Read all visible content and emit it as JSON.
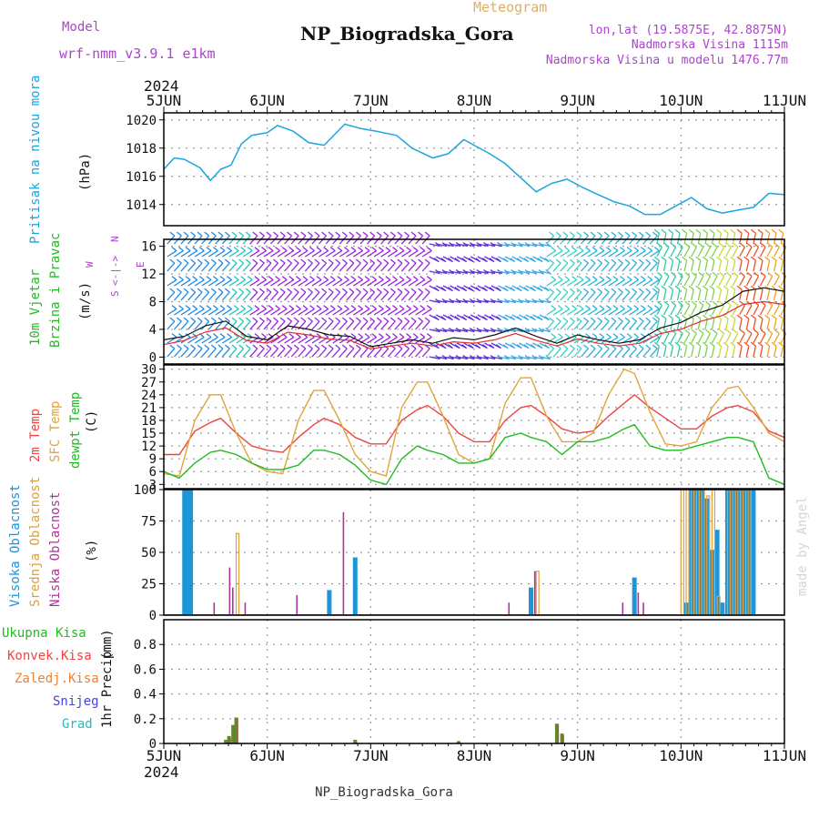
{
  "header": {
    "model_label": "Model",
    "model_name": "wrf-nmm_v3.9.1 e1km",
    "meteogram_label": "Meteogram",
    "station_title": "NP_Biogradska_Gora",
    "lonlat": "lon,lat (19.5875E, 42.8875N)",
    "altitude": "Nadmorska Visina 1115m",
    "model_altitude": "Nadmorska Visina u modelu 1476.77m",
    "year": "2024",
    "footer_station": "NP_Biogradska_Gora",
    "credit": "made by Angel"
  },
  "colors": {
    "pressure": "#1ba5dc",
    "t2m": "#ee4444",
    "tsfc": "#e0a53a",
    "dewpt": "#22bb22",
    "high_cloud": "#1c95d9",
    "mid_cloud": "#dca040",
    "low_cloud": "#b0329e",
    "precip_total": "#5f8a2d",
    "precip_conv": "#dd3333",
    "model_text": "#aa44cc",
    "meteogram_text": "#e0b060"
  },
  "days": [
    "5JUN",
    "6JUN",
    "7JUN",
    "8JUN",
    "9JUN",
    "10JUN",
    "11JUN"
  ],
  "chart_data": [
    {
      "id": "pressure",
      "type": "line",
      "ylabel": "Pritisak na nivou mora",
      "unit": "(hPa)",
      "ylim": [
        1012.5,
        1020.5
      ],
      "yticks": [
        1014,
        1016,
        1018,
        1020
      ],
      "series": [
        {
          "x": [
            0,
            0.1,
            0.2,
            0.35,
            0.45,
            0.55,
            0.65,
            0.75,
            0.85,
            1.0,
            1.1,
            1.25,
            1.4,
            1.55,
            1.75,
            1.9,
            2.05,
            2.25,
            2.4,
            2.6,
            2.75,
            2.9,
            3.0,
            3.15,
            3.3,
            3.45,
            3.6,
            3.75,
            3.9,
            4.05,
            4.2,
            4.35,
            4.5,
            4.65,
            4.8,
            4.95,
            5.1,
            5.25,
            5.4,
            5.55,
            5.7,
            5.85,
            6.0
          ],
          "values": [
            1016.5,
            1017.3,
            1017.2,
            1016.6,
            1015.7,
            1016.5,
            1016.8,
            1018.3,
            1018.9,
            1019.1,
            1019.6,
            1019.2,
            1018.4,
            1018.2,
            1019.7,
            1019.4,
            1019.2,
            1018.9,
            1018.0,
            1017.3,
            1017.6,
            1018.6,
            1018.2,
            1017.6,
            1016.9,
            1015.9,
            1014.9,
            1015.5,
            1015.8,
            1015.2,
            1014.7,
            1014.2,
            1013.9,
            1013.3,
            1013.3,
            1013.9,
            1014.5,
            1013.7,
            1013.4,
            1013.6,
            1013.8,
            1014.8,
            1014.7
          ]
        }
      ]
    },
    {
      "id": "wind",
      "type": "line",
      "ylabel": "10m Vjetar Brzina i Pravac",
      "unit": "(m/s)",
      "compass": [
        "N",
        "E",
        "W",
        "S"
      ],
      "ylim": [
        -1,
        17
      ],
      "yticks": [
        0,
        4,
        8,
        12,
        16
      ],
      "series": [
        {
          "x": [
            0,
            0.2,
            0.4,
            0.6,
            0.8,
            1.0,
            1.2,
            1.4,
            1.6,
            1.8,
            2.0,
            2.2,
            2.4,
            2.6,
            2.8,
            3.0,
            3.2,
            3.4,
            3.6,
            3.8,
            4.0,
            4.2,
            4.4,
            4.6,
            4.8,
            5.0,
            5.2,
            5.4,
            5.6,
            5.8,
            6.0
          ],
          "values": [
            2.5,
            3.0,
            4.5,
            5.2,
            3.0,
            2.5,
            4.5,
            4.0,
            3.2,
            3.0,
            1.5,
            2.0,
            2.5,
            2.0,
            2.8,
            2.5,
            3.2,
            4.2,
            3.0,
            2.0,
            3.2,
            2.5,
            2.0,
            2.5,
            4.2,
            5.0,
            6.5,
            7.5,
            9.5,
            10.0,
            9.5
          ]
        },
        {
          "x": [
            0,
            0.2,
            0.4,
            0.6,
            0.8,
            1.0,
            1.2,
            1.4,
            1.6,
            1.8,
            2.0,
            2.2,
            2.4,
            2.6,
            2.8,
            3.0,
            3.2,
            3.4,
            3.6,
            3.8,
            4.0,
            4.2,
            4.4,
            4.6,
            4.8,
            5.0,
            5.2,
            5.4,
            5.6,
            5.8,
            6.0
          ],
          "values": [
            1.8,
            2.4,
            3.6,
            4.2,
            2.4,
            2.0,
            3.6,
            3.2,
            2.6,
            2.4,
            1.2,
            1.6,
            2.0,
            1.6,
            2.2,
            2.0,
            2.5,
            3.4,
            2.4,
            1.6,
            2.6,
            2.0,
            1.6,
            2.0,
            3.4,
            4.0,
            5.2,
            6.0,
            7.6,
            8.0,
            7.6
          ]
        }
      ]
    },
    {
      "id": "temperature",
      "type": "line",
      "ylabel": "2m Temp / SFC Temp / dewpt Temp",
      "unit": "(C)",
      "ylim": [
        2,
        31
      ],
      "yticks": [
        3,
        6,
        9,
        12,
        15,
        18,
        21,
        24,
        27,
        30
      ],
      "legend": [
        "2m Temp",
        "SFC Temp",
        "dewpt Temp"
      ],
      "series": [
        {
          "x": [
            0,
            0.15,
            0.3,
            0.45,
            0.55,
            0.7,
            0.85,
            1.0,
            1.15,
            1.3,
            1.45,
            1.55,
            1.7,
            1.85,
            2.0,
            2.15,
            2.3,
            2.45,
            2.55,
            2.7,
            2.85,
            3.0,
            3.15,
            3.3,
            3.45,
            3.55,
            3.7,
            3.85,
            4.0,
            4.15,
            4.3,
            4.45,
            4.55,
            4.7,
            4.85,
            5.0,
            5.15,
            5.3,
            5.45,
            5.55,
            5.7,
            5.85,
            6.0
          ],
          "values": [
            10,
            10,
            15.5,
            17.5,
            18.5,
            15,
            12,
            11,
            10.5,
            14,
            17,
            18.5,
            17,
            14,
            12.5,
            12.5,
            18,
            20.5,
            21.5,
            19,
            15,
            13,
            13,
            18,
            21,
            21.5,
            19,
            16,
            15,
            15.5,
            19,
            22,
            24,
            21,
            18.5,
            16,
            16,
            19,
            21,
            21.5,
            20,
            15.5,
            14
          ]
        },
        {
          "x": [
            0,
            0.15,
            0.3,
            0.45,
            0.55,
            0.7,
            0.85,
            1.0,
            1.15,
            1.3,
            1.45,
            1.55,
            1.7,
            1.85,
            2.0,
            2.15,
            2.3,
            2.45,
            2.55,
            2.7,
            2.85,
            3.0,
            3.15,
            3.3,
            3.45,
            3.55,
            3.7,
            3.85,
            4.0,
            4.15,
            4.3,
            4.45,
            4.55,
            4.7,
            4.85,
            5.0,
            5.15,
            5.3,
            5.45,
            5.55,
            5.7,
            5.85,
            6.0
          ],
          "values": [
            5.5,
            5,
            18,
            24,
            24,
            15,
            8,
            6,
            5.5,
            18,
            25,
            25,
            18,
            10,
            6,
            5,
            21,
            27,
            27,
            19,
            10,
            8,
            9,
            22,
            28,
            28,
            19,
            13,
            13,
            15,
            24,
            30,
            29,
            20,
            12.5,
            12,
            13,
            21,
            25.5,
            26,
            21,
            15,
            13
          ]
        },
        {
          "x": [
            0,
            0.15,
            0.3,
            0.45,
            0.55,
            0.7,
            0.85,
            1.0,
            1.15,
            1.3,
            1.45,
            1.55,
            1.7,
            1.85,
            2.0,
            2.15,
            2.3,
            2.45,
            2.55,
            2.7,
            2.85,
            3.0,
            3.15,
            3.3,
            3.45,
            3.55,
            3.7,
            3.85,
            4.0,
            4.15,
            4.3,
            4.45,
            4.55,
            4.7,
            4.85,
            5.0,
            5.15,
            5.3,
            5.45,
            5.55,
            5.7,
            5.85,
            6.0
          ],
          "values": [
            6,
            4.5,
            8,
            10.5,
            11,
            10,
            8,
            6.5,
            6.5,
            7.5,
            11,
            11,
            10,
            7.5,
            4,
            3,
            9,
            12,
            11,
            10,
            8,
            8,
            9,
            14,
            15,
            14,
            13,
            10,
            13,
            13,
            14,
            16,
            17,
            12,
            11,
            11,
            12,
            13,
            14,
            14,
            13,
            4.5,
            3
          ]
        }
      ]
    },
    {
      "id": "clouds",
      "type": "bar",
      "ylabel": "Visoka Oblacnost / Srednja Oblacnost / Niska Oblacnost",
      "unit": "(%)",
      "ylim": [
        0,
        100
      ],
      "yticks": [
        0,
        25,
        50,
        75,
        100
      ],
      "legend": [
        "Visoka Oblacnost",
        "Srednja Oblacnost",
        "Niska Oblacnost"
      ],
      "series": [
        {
          "name": "high",
          "x": [
            0.2,
            0.23,
            0.26,
            1.6,
            1.85,
            3.55,
            4.55,
            5.05,
            5.1,
            5.15,
            5.2,
            5.25,
            5.3,
            5.35,
            5.4,
            5.45,
            5.5,
            5.55,
            5.6,
            5.65,
            5.7
          ],
          "values": [
            100,
            100,
            100,
            20,
            46,
            22,
            30,
            10,
            100,
            100,
            100,
            93,
            52,
            68,
            10,
            100,
            100,
            100,
            100,
            100,
            100
          ]
        },
        {
          "name": "mid",
          "x": [
            0.7,
            3.6,
            5.0,
            5.05,
            5.1,
            5.15,
            5.2,
            5.25,
            5.3,
            5.35,
            5.45,
            5.5,
            5.55,
            5.6,
            5.65
          ],
          "values": [
            65,
            35,
            100,
            100,
            100,
            100,
            100,
            95,
            100,
            15,
            100,
            100,
            100,
            100,
            100
          ]
        },
        {
          "name": "low",
          "x": [
            0.5,
            0.65,
            0.68,
            0.8,
            1.3,
            1.75,
            3.35,
            3.6,
            4.45,
            4.6,
            4.65
          ],
          "values": [
            10,
            38,
            22,
            10,
            16,
            82,
            10,
            35,
            10,
            18,
            10
          ]
        }
      ]
    },
    {
      "id": "precip",
      "type": "bar",
      "ylabel": "1hr Precip",
      "unit": "(mm)",
      "ylim": [
        0,
        1.0
      ],
      "yticks": [
        0,
        0.2,
        0.4,
        0.6,
        0.8
      ],
      "legend": [
        "Ukupna Kisa",
        "Konvek.Kisa",
        "Zaledj.Kisa",
        "Snijeg",
        "Grad"
      ],
      "series": [
        {
          "name": "total",
          "x": [
            0.6,
            0.63,
            0.67,
            0.7,
            1.85,
            2.85,
            3.8,
            3.85
          ],
          "values": [
            0.03,
            0.06,
            0.15,
            0.21,
            0.03,
            0.02,
            0.16,
            0.08
          ]
        }
      ]
    }
  ]
}
